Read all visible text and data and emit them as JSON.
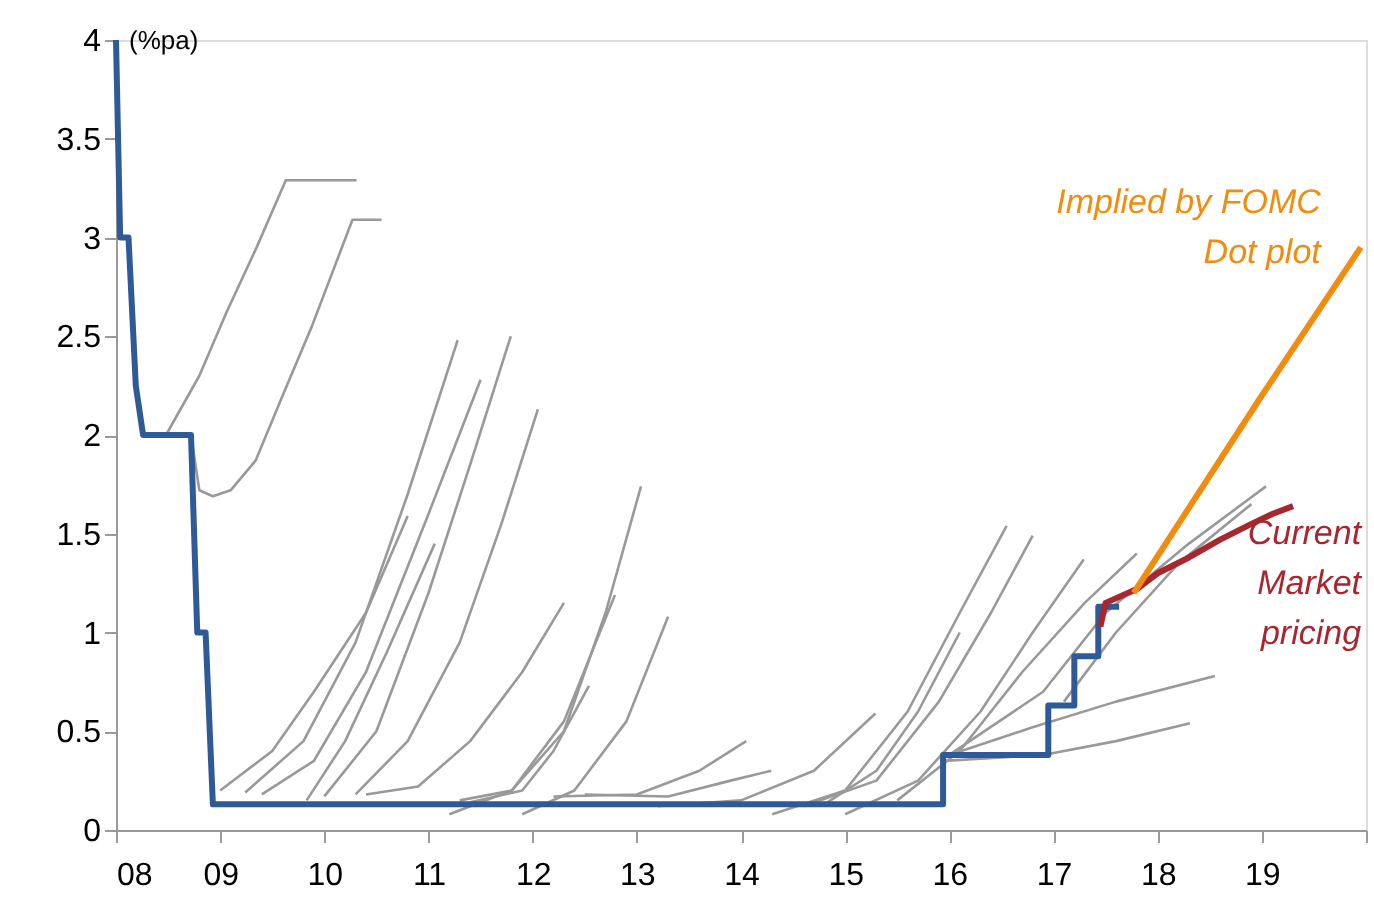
{
  "chart_data": {
    "type": "line",
    "ylabel": "(%pa)",
    "xlim": [
      2008,
      2020
    ],
    "ylim": [
      0,
      4
    ],
    "xticks": [
      {
        "value": 2008,
        "label": "08"
      },
      {
        "value": 2009,
        "label": "09"
      },
      {
        "value": 2010,
        "label": "10"
      },
      {
        "value": 2011,
        "label": "11"
      },
      {
        "value": 2012,
        "label": "12"
      },
      {
        "value": 2013,
        "label": "13"
      },
      {
        "value": 2014,
        "label": "14"
      },
      {
        "value": 2015,
        "label": "15"
      },
      {
        "value": 2016,
        "label": "16"
      },
      {
        "value": 2017,
        "label": "17"
      },
      {
        "value": 2018,
        "label": "18"
      },
      {
        "value": 2019,
        "label": "19"
      },
      {
        "value": 2020,
        "label": null
      }
    ],
    "yticks": [
      0,
      0.5,
      1,
      1.5,
      2,
      2.5,
      3,
      3.5,
      4
    ],
    "grid": false,
    "legend": false,
    "line_style": "solid",
    "marker": "none",
    "series": [
      {
        "color": "#999999",
        "x": [
          2008.48,
          2008.8,
          2009.06,
          2009.35,
          2009.63,
          2010.31
        ],
        "values": [
          2.0,
          2.3,
          2.62,
          2.95,
          3.29,
          3.29
        ]
      },
      {
        "color": "#999999",
        "x": [
          2008.72,
          2008.8,
          2008.93,
          2009.1,
          2009.34,
          2009.6,
          2009.88,
          2010.27,
          2010.55
        ],
        "values": [
          2.0,
          1.72,
          1.69,
          1.72,
          1.87,
          2.2,
          2.55,
          3.09,
          3.09
        ]
      },
      {
        "color": "#999999",
        "x": [
          2009.0,
          2009.5,
          2009.9,
          2010.4,
          2010.8
        ],
        "values": [
          0.2,
          0.4,
          0.7,
          1.1,
          1.59
        ]
      },
      {
        "color": "#999999",
        "x": [
          2009.24,
          2009.8,
          2010.3,
          2010.8,
          2011.28
        ],
        "values": [
          0.19,
          0.45,
          0.95,
          1.7,
          2.48
        ]
      },
      {
        "color": "#999999",
        "x": [
          2009.4,
          2009.9,
          2010.4,
          2011.0,
          2011.5
        ],
        "values": [
          0.18,
          0.35,
          0.8,
          1.6,
          2.28
        ]
      },
      {
        "color": "#999999",
        "x": [
          2009.83,
          2010.2,
          2010.6,
          2011.06
        ],
        "values": [
          0.15,
          0.45,
          0.9,
          1.45
        ]
      },
      {
        "color": "#999999",
        "x": [
          2010.0,
          2010.5,
          2011.0,
          2011.4,
          2011.79
        ],
        "values": [
          0.17,
          0.5,
          1.2,
          1.85,
          2.5
        ]
      },
      {
        "color": "#999999",
        "x": [
          2010.3,
          2010.8,
          2011.3,
          2011.7,
          2012.05
        ],
        "values": [
          0.18,
          0.45,
          0.95,
          1.55,
          2.13
        ]
      },
      {
        "color": "#999999",
        "x": [
          2010.4,
          2010.9,
          2011.4,
          2011.9,
          2012.3
        ],
        "values": [
          0.18,
          0.22,
          0.45,
          0.8,
          1.15
        ]
      },
      {
        "color": "#999999",
        "x": [
          2011.2,
          2011.8,
          2012.3,
          2012.7,
          2013.04
        ],
        "values": [
          0.08,
          0.2,
          0.5,
          1.1,
          1.74
        ]
      },
      {
        "color": "#999999",
        "x": [
          2011.3,
          2011.8,
          2012.3,
          2012.79
        ],
        "values": [
          0.15,
          0.2,
          0.55,
          1.19
        ]
      },
      {
        "color": "#999999",
        "x": [
          2011.4,
          2011.9,
          2012.2,
          2012.54
        ],
        "values": [
          0.14,
          0.2,
          0.4,
          0.73
        ]
      },
      {
        "color": "#999999",
        "x": [
          2011.9,
          2012.4,
          2012.9,
          2013.3
        ],
        "values": [
          0.08,
          0.2,
          0.55,
          1.08
        ]
      },
      {
        "color": "#999999",
        "x": [
          2012.2,
          2013.0,
          2013.6,
          2014.05
        ],
        "values": [
          0.17,
          0.18,
          0.3,
          0.45
        ]
      },
      {
        "color": "#999999",
        "x": [
          2012.5,
          2013.3,
          2013.9,
          2014.29
        ],
        "values": [
          0.18,
          0.17,
          0.25,
          0.3
        ]
      },
      {
        "color": "#999999",
        "x": [
          2013.2,
          2014.0,
          2014.7,
          2015.29
        ],
        "values": [
          0.12,
          0.15,
          0.3,
          0.59
        ]
      },
      {
        "color": "#999999",
        "x": [
          2014.3,
          2015.0,
          2015.6,
          2016.1,
          2016.55
        ],
        "values": [
          0.08,
          0.2,
          0.6,
          1.1,
          1.54
        ]
      },
      {
        "color": "#999999",
        "x": [
          2014.6,
          2015.3,
          2015.9,
          2016.4,
          2016.8
        ],
        "values": [
          0.12,
          0.25,
          0.65,
          1.1,
          1.49
        ]
      },
      {
        "color": "#999999",
        "x": [
          2014.8,
          2015.3,
          2015.7,
          2016.1
        ],
        "values": [
          0.13,
          0.3,
          0.6,
          1.0
        ]
      },
      {
        "color": "#999999",
        "x": [
          2015.0,
          2015.7,
          2016.3,
          2016.8,
          2017.29
        ],
        "values": [
          0.08,
          0.25,
          0.6,
          1.0,
          1.37
        ]
      },
      {
        "color": "#999999",
        "x": [
          2015.5,
          2016.1,
          2016.7,
          2017.3,
          2017.8
        ],
        "values": [
          0.15,
          0.4,
          0.8,
          1.15,
          1.4
        ]
      },
      {
        "color": "#999999",
        "x": [
          2016.0,
          2016.9,
          2017.5,
          2018.3,
          2019.04
        ],
        "values": [
          0.38,
          0.7,
          1.1,
          1.45,
          1.74
        ]
      },
      {
        "color": "#999999",
        "x": [
          2016.0,
          2016.8,
          2017.6,
          2018.55
        ],
        "values": [
          0.38,
          0.52,
          0.65,
          0.78
        ]
      },
      {
        "color": "#999999",
        "x": [
          2015.95,
          2016.9,
          2017.6,
          2018.31
        ],
        "values": [
          0.35,
          0.38,
          0.45,
          0.54
        ]
      },
      {
        "color": "#999999",
        "x": [
          2017.1,
          2017.6,
          2018.2,
          2018.9
        ],
        "values": [
          0.65,
          1.0,
          1.35,
          1.65
        ]
      },
      {
        "color": "#2e5b98",
        "x": [
          2008.0,
          2008.04,
          2008.12,
          2008.19,
          2008.26,
          2008.72,
          2008.78,
          2008.86,
          2008.93,
          2015.94,
          2015.94,
          2016.95,
          2016.95,
          2017.2,
          2017.2,
          2017.43,
          2017.43,
          2017.63
        ],
        "values": [
          4.0,
          3.0,
          3.0,
          2.25,
          2.0,
          2.0,
          1.0,
          1.0,
          0.13,
          0.13,
          0.38,
          0.38,
          0.63,
          0.63,
          0.88,
          0.88,
          1.13,
          1.13
        ]
      },
      {
        "name": "Current Market pricing",
        "color": "#a8262e",
        "x": [
          2017.45,
          2017.5,
          2017.8,
          2018.0,
          2018.3,
          2018.6,
          2018.9,
          2019.1,
          2019.3
        ],
        "values": [
          1.03,
          1.15,
          1.22,
          1.3,
          1.38,
          1.47,
          1.55,
          1.6,
          1.64
        ]
      },
      {
        "name": "Implied by FOMC Dot plot",
        "color": "#f28c0f",
        "x": [
          2017.77,
          2019.0,
          2019.95
        ],
        "values": [
          1.2,
          2.2,
          2.95
        ]
      }
    ]
  }
}
